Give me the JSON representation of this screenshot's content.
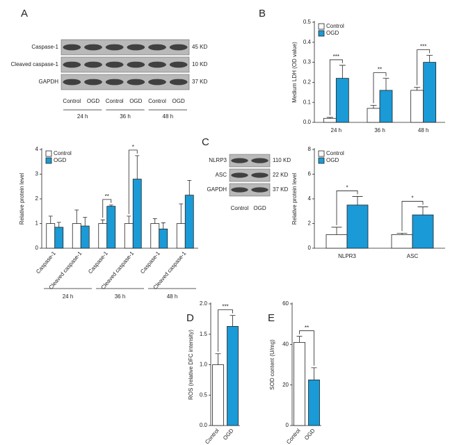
{
  "panel_letters": [
    "A",
    "B",
    "C",
    "D",
    "E"
  ],
  "blots": [
    {
      "rows": [
        "Caspase-1",
        "Cleaved caspase-1",
        "GAPDH"
      ],
      "sizes": [
        "45 KD",
        "10 KD",
        "37 KD"
      ],
      "lanes": [
        "Control",
        "OGD",
        "Control",
        "OGD",
        "Control",
        "OGD"
      ],
      "groups": [
        "24 h",
        "36 h",
        "48 h"
      ]
    },
    {
      "rows": [
        "NLRP3",
        "ASC",
        "GAPDH"
      ],
      "sizes": [
        "110 KD",
        "22 KD",
        "37 KD"
      ],
      "lanes": [
        "Control",
        "OGD"
      ]
    }
  ],
  "chart_data": [
    {
      "type": "bar",
      "ylabel": "Medium LDH (OD value)",
      "categories": [
        "24 h",
        "36 h",
        "48 h"
      ],
      "series": [
        {
          "name": "Control",
          "color": "#ffffff",
          "values": [
            0.02,
            0.07,
            0.16
          ],
          "errors": [
            0.005,
            0.015,
            0.015
          ]
        },
        {
          "name": "OGD",
          "color": "#1a9ad6",
          "values": [
            0.22,
            0.16,
            0.3
          ],
          "errors": [
            0.065,
            0.06,
            0.035
          ]
        }
      ],
      "significance": [
        "***",
        "**",
        "***"
      ],
      "ylim": [
        0,
        0.5
      ],
      "yticks": [
        {
          "value": 0,
          "label": "0.0"
        },
        0.1,
        0.2,
        0.3,
        0.4,
        0.5
      ],
      "legend": "upper left"
    },
    {
      "type": "bar",
      "ylabel": "Relative protein level",
      "categories": [
        "Caspase-1",
        "Cleaved caspase-1",
        "Caspase-1",
        "Cleaved caspase-1",
        "Caspase-1",
        "Cleaved caspase-1"
      ],
      "groups": [
        "24 h",
        "36 h",
        "48 h"
      ],
      "series": [
        {
          "name": "Control",
          "color": "#ffffff",
          "values": [
            1,
            1,
            1,
            1,
            1,
            1
          ],
          "errors": [
            0.3,
            0.55,
            0.15,
            0.3,
            0.2,
            0.8
          ]
        },
        {
          "name": "OGD",
          "color": "#1a9ad6",
          "values": [
            0.85,
            0.9,
            1.7,
            2.8,
            0.78,
            2.15
          ],
          "errors": [
            0.2,
            0.35,
            0.05,
            0.95,
            0.25,
            0.6
          ]
        }
      ],
      "significance": [
        null,
        null,
        "**",
        "*",
        null,
        null
      ],
      "ylim": [
        0,
        4
      ],
      "yticks": [
        0,
        1,
        2,
        3,
        4
      ],
      "legend": "upper left"
    },
    {
      "type": "bar",
      "ylabel": "Relative protein level",
      "categories": [
        "NLPR3",
        "ASC"
      ],
      "series": [
        {
          "name": "Control",
          "color": "#ffffff",
          "values": [
            1.1,
            1.1
          ],
          "errors": [
            0.6,
            0.12
          ]
        },
        {
          "name": "OGD",
          "color": "#1a9ad6",
          "values": [
            3.5,
            2.7
          ],
          "errors": [
            0.7,
            0.65
          ]
        }
      ],
      "significance": [
        "*",
        "*"
      ],
      "ylim": [
        0,
        8
      ],
      "yticks": [
        0,
        2,
        4,
        6,
        8
      ],
      "legend": "upper left"
    },
    {
      "type": "bar",
      "ylabel": "ROS (relative DFC intensity)",
      "categories": [
        "Control",
        "OGD"
      ],
      "values": [
        1.0,
        1.63
      ],
      "errors": [
        0.18,
        0.18
      ],
      "colors": [
        "#ffffff",
        "#1a9ad6"
      ],
      "significance": "***",
      "ylim": [
        0,
        2
      ],
      "yticks": [
        {
          "value": 0,
          "label": "0.0"
        },
        0.5,
        {
          "value": 1,
          "label": "1.0"
        },
        1.5,
        {
          "value": 2,
          "label": "2.0"
        }
      ]
    },
    {
      "type": "bar",
      "ylabel": "SOD content (U/mg)",
      "categories": [
        "Control",
        "OGD"
      ],
      "values": [
        41,
        22.5
      ],
      "errors": [
        3,
        6
      ],
      "colors": [
        "#ffffff",
        "#1a9ad6"
      ],
      "significance": "**",
      "ylim": [
        0,
        60
      ],
      "yticks": [
        0,
        20,
        40,
        60
      ]
    }
  ]
}
